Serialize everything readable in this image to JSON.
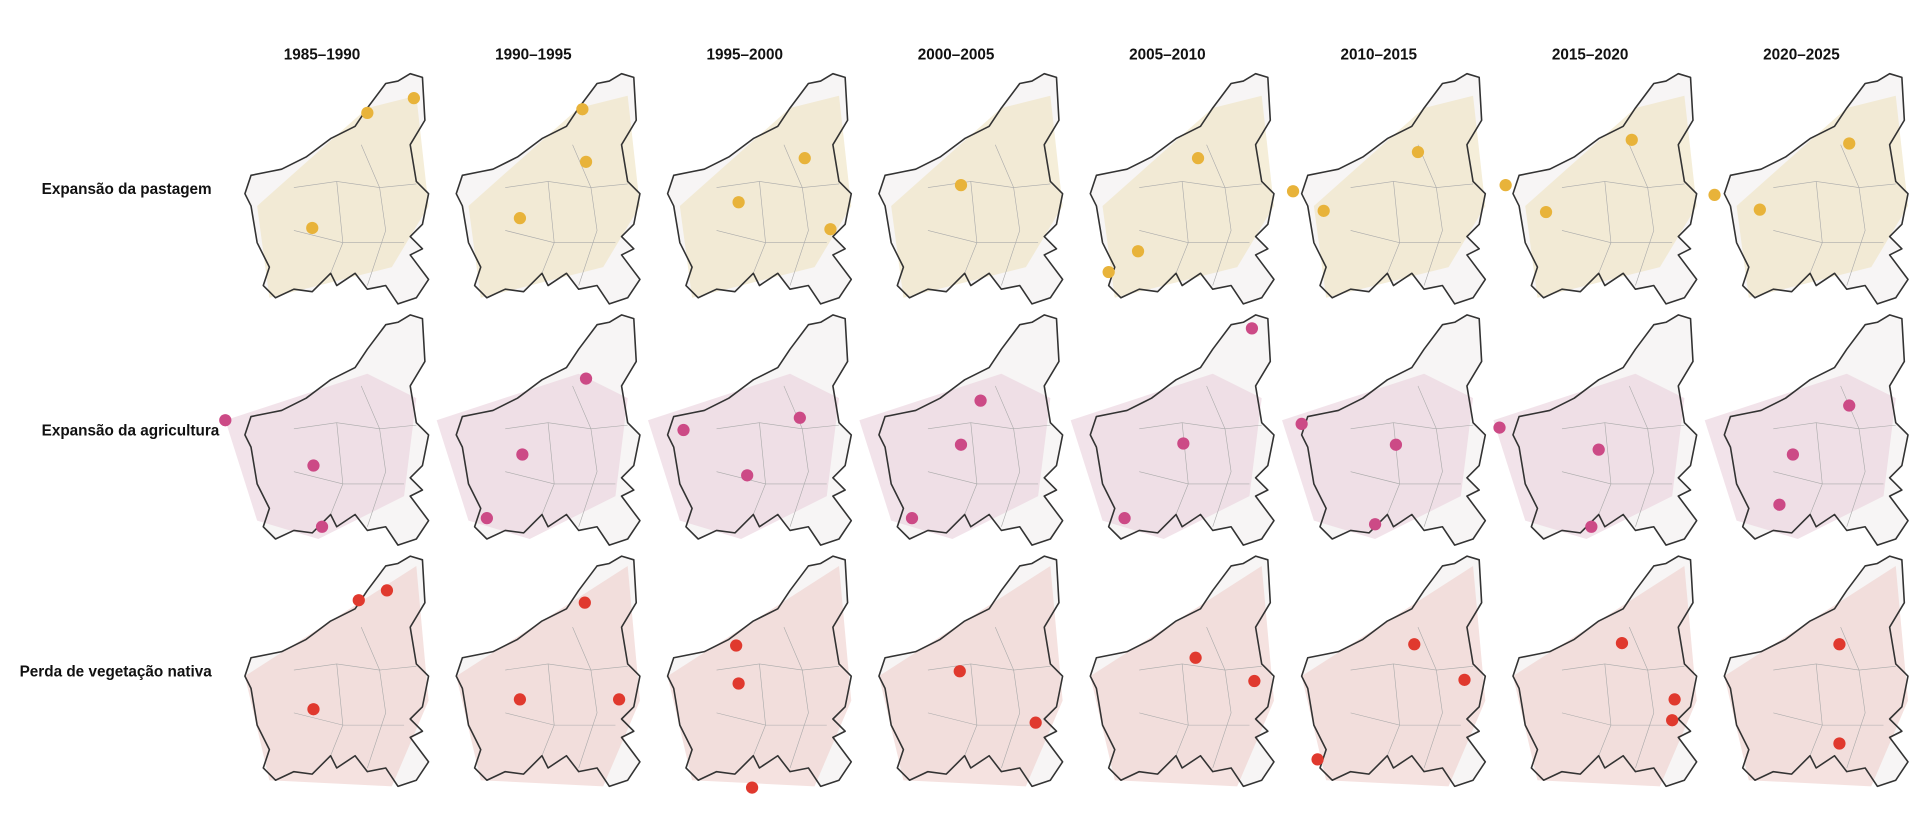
{
  "columns": [
    "1985–1990",
    "1990–1995",
    "1995–2000",
    "2000–2005",
    "2005–2010",
    "2010–2015",
    "2015–2020",
    "2020–2025"
  ],
  "rows": [
    "Expansão da pastagem",
    "Expansão da agricultura",
    "Perda de vegetação nativa"
  ]
}
